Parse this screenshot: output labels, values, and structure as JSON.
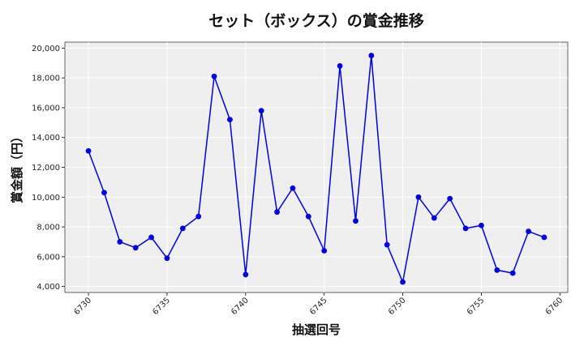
{
  "chart_data": {
    "type": "line",
    "title": "セット（ボックス）の賞金推移",
    "xlabel": "抽選回号",
    "ylabel": "賞金額（円）",
    "xlim": [
      6728.5,
      6760.5
    ],
    "ylim": [
      3600,
      20400
    ],
    "x_ticks": [
      "6730",
      "6735",
      "6740",
      "6745",
      "6750",
      "6755",
      "6760"
    ],
    "y_ticks": [
      "4,000",
      "6,000",
      "8,000",
      "10,000",
      "12,000",
      "14,000",
      "16,000",
      "18,000",
      "20,000"
    ],
    "grid": true,
    "series": [
      {
        "color": "#0000dd",
        "x": [
          6730,
          6731,
          6732,
          6733,
          6734,
          6735,
          6736,
          6737,
          6738,
          6739,
          6740,
          6741,
          6742,
          6743,
          6744,
          6745,
          6746,
          6747,
          6748,
          6749,
          6750,
          6751,
          6752,
          6753,
          6754,
          6755,
          6756,
          6757,
          6758,
          6759
        ],
        "values": [
          13100,
          10300,
          7000,
          6600,
          7300,
          5900,
          7900,
          8700,
          18100,
          15200,
          4800,
          15800,
          9000,
          10600,
          8700,
          6400,
          18800,
          8400,
          19500,
          6800,
          4300,
          10000,
          8600,
          9900,
          7900,
          8100,
          5100,
          4900,
          7700,
          7300
        ]
      }
    ]
  }
}
